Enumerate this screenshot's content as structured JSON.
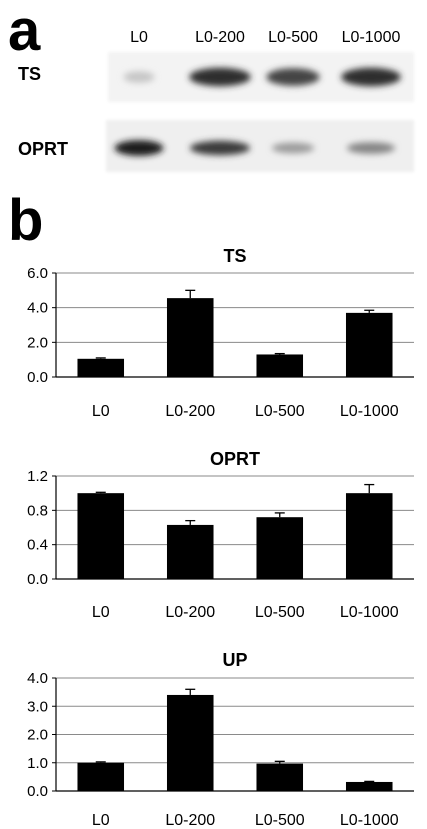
{
  "panel_a": {
    "letter": "a",
    "lanes": [
      "L0",
      "L0-200",
      "L0-500",
      "L0-1000"
    ],
    "rows": [
      {
        "label": "TS",
        "band_intensity": [
          0.15,
          0.85,
          0.75,
          0.85
        ]
      },
      {
        "label": "OPRT",
        "band_intensity": [
          0.95,
          0.8,
          0.35,
          0.45
        ]
      }
    ]
  },
  "panel_b": {
    "letter": "b"
  },
  "chart_data": [
    {
      "type": "bar",
      "title": "TS",
      "categories": [
        "L0",
        "L0-200",
        "L0-500",
        "L0-1000"
      ],
      "values": [
        1.05,
        4.55,
        1.3,
        3.7
      ],
      "errors": [
        0.05,
        0.45,
        0.05,
        0.15
      ],
      "yticks": [
        "0.0",
        "2.0",
        "4.0",
        "6.0"
      ],
      "ylim": [
        0,
        6
      ],
      "grid": true,
      "bar_color": "#000000"
    },
    {
      "type": "bar",
      "title": "OPRT",
      "categories": [
        "L0",
        "L0-200",
        "L0-500",
        "L0-1000"
      ],
      "values": [
        1.0,
        0.63,
        0.72,
        1.0
      ],
      "errors": [
        0.01,
        0.05,
        0.05,
        0.1
      ],
      "yticks": [
        "0.0",
        "0.4",
        "0.8",
        "1.2"
      ],
      "ylim": [
        0,
        1.2
      ],
      "grid": true,
      "bar_color": "#000000"
    },
    {
      "type": "bar",
      "title": "UP",
      "categories": [
        "L0",
        "L0-200",
        "L0-500",
        "L0-1000"
      ],
      "values": [
        1.0,
        3.4,
        0.97,
        0.32
      ],
      "errors": [
        0.03,
        0.2,
        0.08,
        0.02
      ],
      "yticks": [
        "0.0",
        "1.0",
        "2.0",
        "3.0",
        "4.0"
      ],
      "ylim": [
        0,
        4
      ],
      "grid": true,
      "bar_color": "#000000"
    }
  ]
}
